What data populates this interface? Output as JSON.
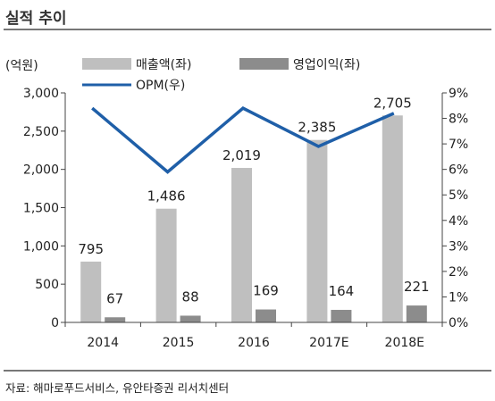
{
  "header": {
    "title": "실적 추이"
  },
  "footer": {
    "source": "자료: 해마로푸드서비스, 유안타증권 리서치센터"
  },
  "chart_data": {
    "type": "bar+line",
    "left_axis_unit": "(억원)",
    "categories": [
      "2014",
      "2015",
      "2016",
      "2017E",
      "2018E"
    ],
    "series": [
      {
        "name": "매출액(좌)",
        "type": "bar",
        "axis": "left",
        "color": "#bfbfbf",
        "values": [
          795,
          1486,
          2019,
          2385,
          2705
        ]
      },
      {
        "name": "영업이익(좌)",
        "type": "bar",
        "axis": "left",
        "color": "#8c8c8c",
        "values": [
          67,
          88,
          169,
          164,
          221
        ]
      },
      {
        "name": "OPM(우)",
        "type": "line",
        "axis": "right",
        "color": "#1f5fa8",
        "values": [
          8.4,
          5.9,
          8.4,
          6.9,
          8.2
        ]
      }
    ],
    "left_axis": {
      "min": 0,
      "max": 3000,
      "step": 500,
      "ticks": [
        "0",
        "500",
        "1,000",
        "1,500",
        "2,000",
        "2,500",
        "3,000"
      ]
    },
    "right_axis": {
      "min": 0,
      "max": 9,
      "step": 1,
      "ticks": [
        "0%",
        "1%",
        "2%",
        "3%",
        "4%",
        "5%",
        "6%",
        "7%",
        "8%",
        "9%"
      ]
    },
    "bar_labels": {
      "revenue": [
        "795",
        "1,486",
        "2,019",
        "2,385",
        "2,705"
      ],
      "operating_profit": [
        "67",
        "88",
        "169",
        "164",
        "221"
      ]
    },
    "grid": false,
    "legend_position": "top"
  }
}
